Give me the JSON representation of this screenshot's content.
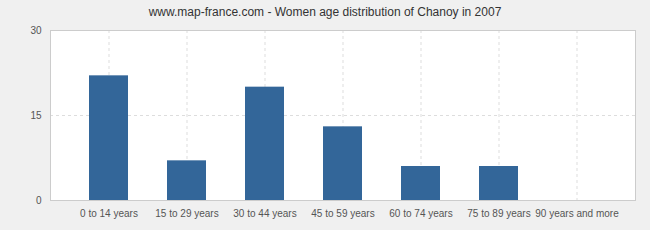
{
  "chart_data": {
    "type": "bar",
    "title": "www.map-france.com - Women age distribution of Chanoy in 2007",
    "categories": [
      "0 to 14 years",
      "15 to 29 years",
      "30 to 44 years",
      "45 to 59 years",
      "60 to 74 years",
      "75 to 89 years",
      "90 years and more"
    ],
    "values": [
      22,
      7,
      20,
      13,
      6,
      6,
      0
    ],
    "color": "#336699",
    "ylim": [
      0,
      30
    ],
    "yticks": [
      0,
      15,
      30
    ],
    "grid": true
  }
}
